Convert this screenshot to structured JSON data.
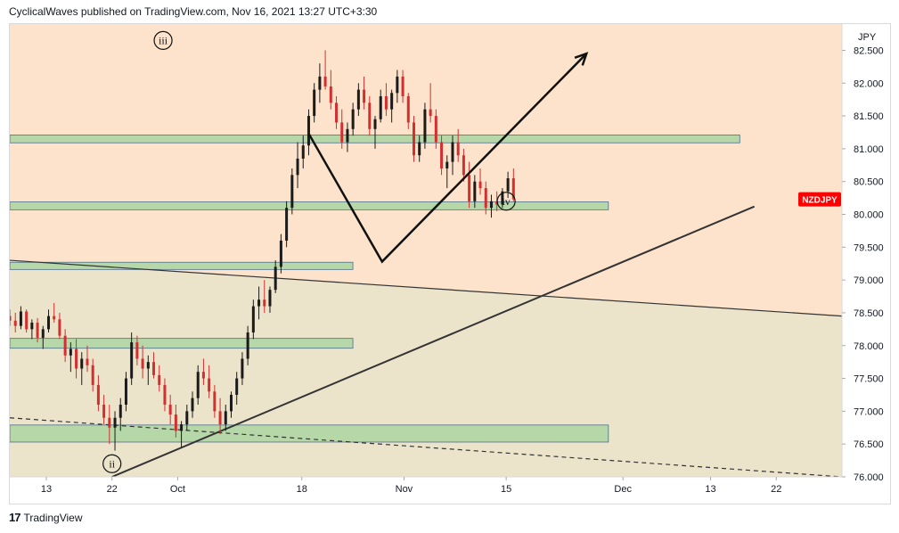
{
  "header": {
    "text": "CyclicalWaves published on TradingView.com, Nov 16, 2021 13:27 UTC+3:30"
  },
  "footer": {
    "brand": "TradingView",
    "logo_icon": "tradingview-logo-icon"
  },
  "chart_data": {
    "type": "candlestick",
    "symbol": "NZDJPY",
    "currency": "JPY",
    "y_range": [
      76.0,
      82.9
    ],
    "y_ticks": [
      "82.500",
      "82.000",
      "81.500",
      "81.000",
      "80.500",
      "80.000",
      "79.500",
      "79.000",
      "78.500",
      "78.000",
      "77.500",
      "77.000",
      "76.500",
      "76.000"
    ],
    "x_ticks": [
      "13",
      "22",
      "Oct",
      "18",
      "Nov",
      "15",
      "Dec",
      "13",
      "22"
    ],
    "colors": {
      "up": "#26a69a",
      "down": "#ef5350",
      "bg_upper": "#fde3cb",
      "bg_lower": "#ece3cb",
      "zone": "#b6d7a8"
    },
    "price_tag": {
      "label": "NZDJPY",
      "value": 80.23,
      "color": "#ff0000"
    },
    "wave_labels": [
      {
        "text": "iii",
        "date": "2021-09-29",
        "price": 82.65
      },
      {
        "text": "ii",
        "date": "2021-09-22",
        "price": 76.2
      },
      {
        "text": "iv",
        "date": "2021-11-15",
        "price": 80.2
      }
    ],
    "zones": [
      {
        "name": "zone-81",
        "low": 81.09,
        "high": 81.21,
        "end_date": "2021-12-17"
      },
      {
        "name": "zone-80",
        "low": 80.07,
        "high": 80.19,
        "end_date": "2021-11-29"
      },
      {
        "name": "zone-79",
        "low": 79.16,
        "high": 79.27,
        "end_date": "2021-10-25"
      },
      {
        "name": "zone-78",
        "low": 77.96,
        "high": 78.11,
        "end_date": "2021-10-25"
      },
      {
        "name": "zone-76",
        "low": 76.53,
        "high": 76.79,
        "end_date": "2021-11-29"
      }
    ],
    "candles": [
      [
        78.45,
        78.55,
        78.3,
        78.38
      ],
      [
        78.38,
        78.5,
        78.2,
        78.3
      ],
      [
        78.3,
        78.6,
        78.25,
        78.52
      ],
      [
        78.52,
        78.55,
        78.2,
        78.25
      ],
      [
        78.25,
        78.4,
        78.1,
        78.35
      ],
      [
        78.35,
        78.42,
        78.05,
        78.12
      ],
      [
        78.12,
        78.3,
        77.95,
        78.25
      ],
      [
        78.25,
        78.55,
        78.2,
        78.45
      ],
      [
        78.45,
        78.65,
        78.35,
        78.4
      ],
      [
        78.4,
        78.5,
        78.1,
        78.15
      ],
      [
        78.15,
        78.25,
        77.75,
        77.85
      ],
      [
        77.85,
        78.05,
        77.6,
        77.95
      ],
      [
        77.95,
        78.1,
        77.5,
        77.65
      ],
      [
        77.65,
        77.9,
        77.4,
        77.8
      ],
      [
        77.8,
        78.0,
        77.6,
        77.7
      ],
      [
        77.7,
        77.8,
        77.3,
        77.4
      ],
      [
        77.4,
        77.55,
        77.0,
        77.1
      ],
      [
        77.1,
        77.25,
        76.8,
        76.9
      ],
      [
        76.9,
        77.1,
        76.5,
        76.75
      ],
      [
        76.75,
        77.0,
        76.4,
        76.9
      ],
      [
        76.9,
        77.2,
        76.7,
        77.1
      ],
      [
        77.1,
        77.6,
        77.0,
        77.5
      ],
      [
        77.5,
        78.2,
        77.4,
        78.05
      ],
      [
        78.05,
        78.15,
        77.7,
        77.8
      ],
      [
        77.8,
        78.0,
        77.5,
        77.65
      ],
      [
        77.65,
        77.85,
        77.4,
        77.75
      ],
      [
        77.75,
        77.9,
        77.5,
        77.55
      ],
      [
        77.55,
        77.7,
        77.3,
        77.4
      ],
      [
        77.4,
        77.5,
        77.0,
        77.1
      ],
      [
        77.1,
        77.25,
        76.8,
        76.95
      ],
      [
        76.95,
        77.1,
        76.6,
        76.7
      ],
      [
        76.7,
        76.85,
        76.45,
        76.8
      ],
      [
        76.8,
        77.1,
        76.7,
        77.0
      ],
      [
        77.0,
        77.3,
        76.9,
        77.2
      ],
      [
        77.2,
        77.7,
        77.1,
        77.6
      ],
      [
        77.6,
        77.8,
        77.4,
        77.5
      ],
      [
        77.5,
        77.7,
        77.2,
        77.3
      ],
      [
        77.3,
        77.4,
        76.9,
        77.0
      ],
      [
        77.0,
        77.2,
        76.65,
        76.8
      ],
      [
        76.8,
        77.1,
        76.7,
        77.0
      ],
      [
        77.0,
        77.3,
        76.9,
        77.25
      ],
      [
        77.25,
        77.6,
        77.1,
        77.5
      ],
      [
        77.5,
        77.9,
        77.4,
        77.8
      ],
      [
        77.8,
        78.3,
        77.7,
        78.2
      ],
      [
        78.2,
        78.7,
        78.1,
        78.6
      ],
      [
        78.6,
        78.9,
        78.4,
        78.7
      ],
      [
        78.7,
        79.0,
        78.5,
        78.6
      ],
      [
        78.6,
        78.9,
        78.5,
        78.85
      ],
      [
        78.85,
        79.3,
        78.8,
        79.2
      ],
      [
        79.2,
        79.7,
        79.1,
        79.6
      ],
      [
        79.6,
        80.2,
        79.5,
        80.1
      ],
      [
        80.1,
        80.7,
        80.0,
        80.6
      ],
      [
        80.6,
        81.1,
        80.4,
        80.85
      ],
      [
        80.85,
        81.2,
        80.7,
        81.05
      ],
      [
        81.05,
        81.6,
        80.9,
        81.5
      ],
      [
        81.5,
        82.0,
        81.4,
        81.9
      ],
      [
        81.9,
        82.3,
        81.7,
        82.1
      ],
      [
        82.1,
        82.5,
        81.9,
        81.95
      ],
      [
        81.95,
        82.2,
        81.6,
        81.7
      ],
      [
        81.7,
        81.8,
        81.3,
        81.4
      ],
      [
        81.4,
        81.6,
        81.0,
        81.1
      ],
      [
        81.1,
        81.4,
        80.95,
        81.3
      ],
      [
        81.3,
        81.7,
        81.2,
        81.6
      ],
      [
        81.6,
        82.0,
        81.5,
        81.9
      ],
      [
        81.9,
        82.1,
        81.6,
        81.7
      ],
      [
        81.7,
        81.8,
        81.2,
        81.3
      ],
      [
        81.3,
        81.5,
        81.0,
        81.45
      ],
      [
        81.45,
        81.9,
        81.4,
        81.8
      ],
      [
        81.8,
        82.0,
        81.5,
        81.6
      ],
      [
        81.6,
        81.9,
        81.4,
        81.85
      ],
      [
        81.85,
        82.2,
        81.7,
        82.1
      ],
      [
        82.1,
        82.2,
        81.7,
        81.8
      ],
      [
        81.8,
        81.85,
        81.3,
        81.4
      ],
      [
        81.4,
        81.5,
        80.8,
        80.9
      ],
      [
        80.9,
        81.2,
        80.8,
        81.1
      ],
      [
        81.1,
        81.7,
        81.0,
        81.6
      ],
      [
        81.6,
        82.0,
        81.4,
        81.5
      ],
      [
        81.5,
        81.6,
        81.0,
        81.1
      ],
      [
        81.1,
        81.2,
        80.6,
        80.7
      ],
      [
        80.7,
        80.9,
        80.4,
        80.8
      ],
      [
        80.8,
        81.2,
        80.6,
        81.1
      ],
      [
        81.1,
        81.3,
        80.8,
        80.9
      ],
      [
        80.9,
        81.0,
        80.5,
        80.6
      ],
      [
        80.6,
        80.8,
        80.1,
        80.2
      ],
      [
        80.2,
        80.6,
        80.1,
        80.5
      ],
      [
        80.5,
        80.7,
        80.3,
        80.4
      ],
      [
        80.4,
        80.5,
        80.0,
        80.1
      ],
      [
        80.1,
        80.3,
        79.95,
        80.2
      ],
      [
        80.2,
        80.35,
        80.05,
        80.15
      ],
      [
        80.15,
        80.4,
        80.1,
        80.35
      ],
      [
        80.35,
        80.65,
        80.25,
        80.55
      ],
      [
        80.55,
        80.7,
        80.2,
        80.23
      ]
    ],
    "candle_range": [
      "2021-09-08",
      "2021-11-16"
    ],
    "lines": [
      {
        "name": "upper-trendline",
        "from": [
          "2021-09-08",
          79.3
        ],
        "to": [
          "2021-12-31",
          78.45
        ],
        "style": "solid"
      },
      {
        "name": "lower-dashed-trendline",
        "from": [
          "2021-09-08",
          76.9
        ],
        "to": [
          "2021-12-31",
          76.0
        ],
        "style": "dashed"
      },
      {
        "name": "support-trendline",
        "from": [
          "2021-09-22",
          76.0
        ],
        "to": [
          "2021-12-19",
          80.12
        ],
        "style": "solid"
      }
    ],
    "projection": [
      [
        "2021-10-19",
        81.22
      ],
      [
        "2021-10-29",
        79.28
      ],
      [
        "2021-11-26",
        82.45
      ]
    ]
  }
}
